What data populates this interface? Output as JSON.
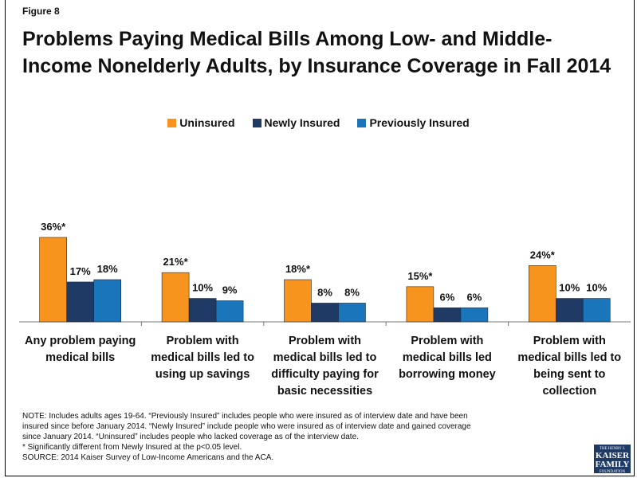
{
  "figure_label": "Figure 8",
  "title_line1": "Problems Paying Medical Bills Among Low- and Middle-",
  "title_line2": "Income Nonelderly Adults, by Insurance Coverage in Fall 2014",
  "colors": {
    "uninsured": "#f7941d",
    "newly": "#1f3a64",
    "previously": "#1a75bb"
  },
  "chart_data": {
    "type": "bar",
    "title": "Problems Paying Medical Bills Among Low- and Middle-Income Nonelderly Adults, by Insurance Coverage in Fall 2014",
    "categories": [
      [
        "Any problem paying",
        "medical bills"
      ],
      [
        "Problem with",
        "medical bills led to",
        "using up savings"
      ],
      [
        "Problem with",
        "medical bills led to",
        "difficulty paying for",
        "basic necessities"
      ],
      [
        "Problem with",
        "medical bills led",
        "borrowing money"
      ],
      [
        "Problem with",
        "medical bills led to",
        "being sent to",
        "collection"
      ]
    ],
    "series": [
      {
        "name": "Uninsured",
        "values": [
          36,
          21,
          18,
          15,
          24
        ],
        "labels": [
          "36%*",
          "21%*",
          "18%*",
          "15%*",
          "24%*"
        ]
      },
      {
        "name": "Newly Insured",
        "values": [
          17,
          10,
          8,
          6,
          10
        ],
        "labels": [
          "17%",
          "10%",
          "8%",
          "6%",
          "10%"
        ]
      },
      {
        "name": "Previously Insured",
        "values": [
          18,
          9,
          8,
          6,
          10
        ],
        "labels": [
          "18%",
          "9%",
          "8%",
          "6%",
          "10%"
        ]
      }
    ],
    "ylim": [
      0,
      36
    ],
    "legend": "top-center",
    "grid": false
  },
  "notes": [
    "NOTE: Includes adults ages 19-64. “Previously Insured” includes people who were insured as of interview date and have been",
    "insured since before January 2014. “Newly Insured” include people who were insured as of interview date and gained coverage",
    "since January 2014. “Uninsured” includes people who lacked coverage as of the interview date.",
    "* Significantly different from Newly Insured at the p<0.05 level.",
    "SOURCE: 2014 Kaiser Survey of Low-Income Americans and the ACA."
  ],
  "logo": {
    "top": "THE HENRY J.",
    "line1": "KAISER",
    "line2": "FAMILY",
    "bottom": "FOUNDATION"
  }
}
